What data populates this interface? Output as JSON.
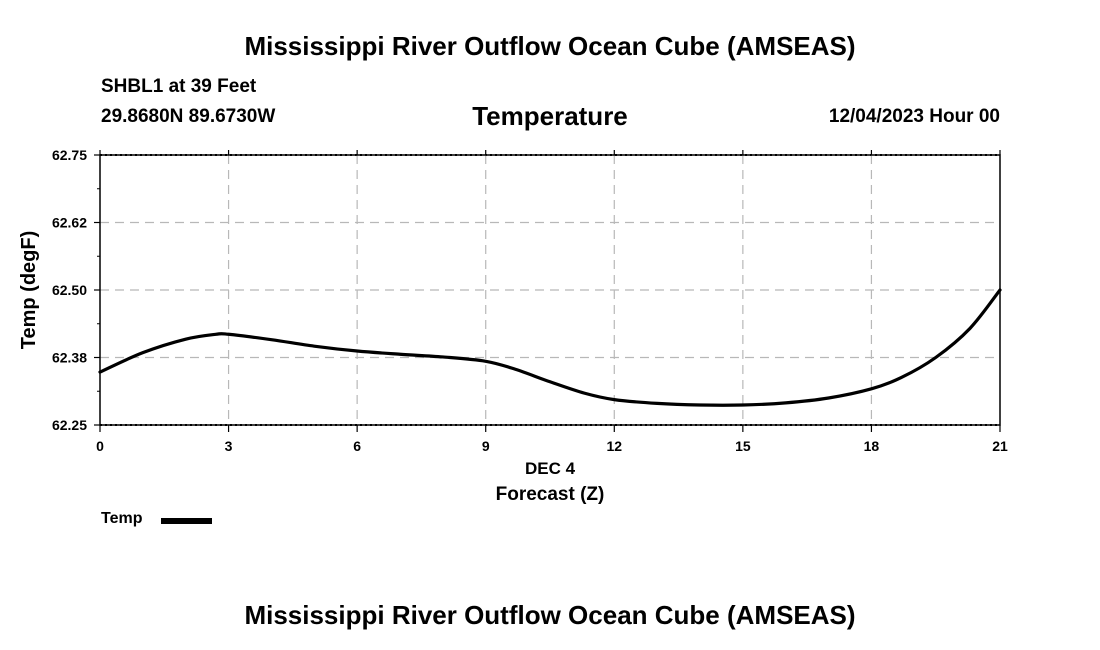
{
  "header": {
    "main_title": "Mississippi River Outflow Ocean Cube (AMSEAS)",
    "station": "SHBL1 at 39 Feet",
    "coords": "29.8680N  89.6730W",
    "variable": "Temperature",
    "datetime": "12/04/2023 Hour 00",
    "footer_title": "Mississippi River Outflow Ocean Cube (AMSEAS)"
  },
  "legend": {
    "label": "Temp",
    "color": "#000000"
  },
  "chart_data": {
    "type": "line",
    "title": "Temperature",
    "xlabel": "Forecast (Z)",
    "xsublabel": "DEC 4",
    "ylabel": "Temp (degF)",
    "xlim": [
      0,
      21
    ],
    "ylim": [
      62.25,
      62.75
    ],
    "xticks": [
      0,
      3,
      6,
      9,
      12,
      15,
      18,
      21
    ],
    "yticks": [
      62.25,
      62.375,
      62.5,
      62.625,
      62.75
    ],
    "ytick_labels": [
      "62.25",
      "62.38",
      "62.50",
      "62.62",
      "62.75"
    ],
    "grid": true,
    "legend_position": "bottom-left",
    "series": [
      {
        "name": "Temp",
        "color": "#000000",
        "x": [
          0,
          1,
          2,
          2.7,
          3,
          4,
          5,
          6,
          7,
          8,
          9,
          9.7,
          10.5,
          11.3,
          12,
          13,
          14,
          15,
          16,
          17,
          18,
          18.7,
          19.5,
          20.3,
          21
        ],
        "y": [
          62.348,
          62.384,
          62.409,
          62.418,
          62.418,
          62.408,
          62.396,
          62.387,
          62.381,
          62.376,
          62.368,
          62.353,
          62.33,
          62.309,
          62.297,
          62.29,
          62.287,
          62.287,
          62.291,
          62.3,
          62.317,
          62.338,
          62.375,
          62.429,
          62.5
        ]
      }
    ]
  }
}
